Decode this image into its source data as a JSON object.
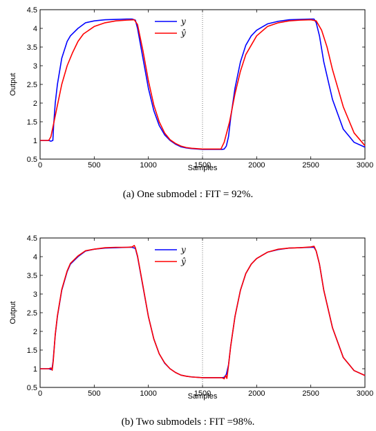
{
  "chart_data": [
    {
      "type": "line",
      "caption": "(a) One submodel : FIT = 92%.",
      "xlabel": "Samples",
      "ylabel": "Output",
      "xlim": [
        0,
        3000
      ],
      "ylim": [
        0.5,
        4.5
      ],
      "xticks": [
        "0",
        "500",
        "1000",
        "1500",
        "2000",
        "2500",
        "3000"
      ],
      "yticks": [
        "0.5",
        "1",
        "1.5",
        "2",
        "2.5",
        "3",
        "3.5",
        "4",
        "4.5"
      ],
      "vline_x": 1500,
      "legend_position": "top-right",
      "series": [
        {
          "name": "y",
          "color": "#0000ff",
          "x": [
            0,
            80,
            100,
            110,
            118,
            125,
            140,
            160,
            200,
            250,
            280,
            350,
            420,
            500,
            600,
            700,
            800,
            850,
            880,
            900,
            950,
            1000,
            1050,
            1100,
            1150,
            1200,
            1250,
            1300,
            1350,
            1400,
            1500,
            1600,
            1680,
            1700,
            1720,
            1740,
            1760,
            1800,
            1850,
            1900,
            1950,
            2000,
            2100,
            2200,
            2300,
            2400,
            2500,
            2530,
            2550,
            2580,
            2620,
            2700,
            2800,
            2900,
            3000
          ],
          "y": [
            1.0,
            1.0,
            0.98,
            0.99,
            1.0,
            1.4,
            2.0,
            2.5,
            3.2,
            3.65,
            3.8,
            4.0,
            4.15,
            4.2,
            4.23,
            4.24,
            4.25,
            4.25,
            4.22,
            4.0,
            3.2,
            2.4,
            1.8,
            1.4,
            1.15,
            1.0,
            0.9,
            0.83,
            0.8,
            0.78,
            0.76,
            0.76,
            0.76,
            0.77,
            0.85,
            1.1,
            1.6,
            2.4,
            3.1,
            3.55,
            3.8,
            3.95,
            4.12,
            4.19,
            4.23,
            4.24,
            4.25,
            4.25,
            4.15,
            3.8,
            3.1,
            2.1,
            1.3,
            0.95,
            0.82
          ]
        },
        {
          "name": "ŷ",
          "color": "#ff0000",
          "x": [
            0,
            80,
            100,
            150,
            200,
            250,
            300,
            350,
            400,
            500,
            600,
            700,
            800,
            870,
            900,
            950,
            1000,
            1050,
            1100,
            1150,
            1200,
            1250,
            1300,
            1350,
            1400,
            1500,
            1600,
            1670,
            1700,
            1750,
            1800,
            1850,
            1900,
            2000,
            2100,
            2200,
            2300,
            2400,
            2500,
            2550,
            2600,
            2650,
            2700,
            2800,
            2900,
            3000
          ],
          "y": [
            1.0,
            1.0,
            1.1,
            1.8,
            2.5,
            3.0,
            3.35,
            3.65,
            3.85,
            4.05,
            4.15,
            4.2,
            4.22,
            4.23,
            4.1,
            3.4,
            2.6,
            1.95,
            1.5,
            1.2,
            1.02,
            0.92,
            0.85,
            0.81,
            0.79,
            0.77,
            0.77,
            0.77,
            0.95,
            1.5,
            2.25,
            2.85,
            3.3,
            3.8,
            4.05,
            4.15,
            4.2,
            4.22,
            4.23,
            4.2,
            3.95,
            3.5,
            2.9,
            1.9,
            1.2,
            0.86
          ]
        }
      ]
    },
    {
      "type": "line",
      "caption": "(b) Two submodels : FIT =98%.",
      "xlabel": "Samples",
      "ylabel": "Output",
      "xlim": [
        0,
        3000
      ],
      "ylim": [
        0.5,
        4.5
      ],
      "xticks": [
        "0",
        "500",
        "1000",
        "1500",
        "2000",
        "2500",
        "3000"
      ],
      "yticks": [
        "0.5",
        "1",
        "1.5",
        "2",
        "2.5",
        "3",
        "3.5",
        "4",
        "4.5"
      ],
      "vline_x": 1500,
      "legend_position": "top-right",
      "series": [
        {
          "name": "y",
          "color": "#0000ff",
          "x": [
            0,
            80,
            100,
            110,
            120,
            140,
            160,
            200,
            250,
            280,
            350,
            420,
            500,
            600,
            700,
            800,
            850,
            880,
            900,
            950,
            1000,
            1050,
            1100,
            1150,
            1200,
            1250,
            1300,
            1350,
            1400,
            1500,
            1600,
            1680,
            1700,
            1720,
            1740,
            1760,
            1800,
            1850,
            1900,
            1950,
            2000,
            2100,
            2200,
            2300,
            2400,
            2500,
            2530,
            2550,
            2580,
            2620,
            2700,
            2800,
            2900,
            3000
          ],
          "y": [
            1.0,
            1.0,
            0.98,
            0.99,
            1.2,
            1.9,
            2.4,
            3.1,
            3.6,
            3.8,
            4.0,
            4.15,
            4.2,
            4.23,
            4.24,
            4.25,
            4.25,
            4.22,
            4.0,
            3.2,
            2.4,
            1.8,
            1.4,
            1.15,
            1.0,
            0.9,
            0.83,
            0.8,
            0.78,
            0.76,
            0.76,
            0.76,
            0.77,
            0.85,
            1.1,
            1.6,
            2.4,
            3.1,
            3.55,
            3.8,
            3.95,
            4.12,
            4.19,
            4.23,
            4.24,
            4.25,
            4.25,
            4.15,
            3.8,
            3.1,
            2.1,
            1.3,
            0.95,
            0.82
          ]
        },
        {
          "name": "ŷ",
          "color": "#ff0000",
          "x": [
            0,
            80,
            100,
            112,
            122,
            140,
            160,
            200,
            250,
            280,
            350,
            420,
            500,
            600,
            700,
            800,
            850,
            870,
            880,
            900,
            950,
            1000,
            1050,
            1100,
            1150,
            1200,
            1250,
            1300,
            1350,
            1400,
            1500,
            1600,
            1680,
            1700,
            1715,
            1725,
            1740,
            1760,
            1800,
            1850,
            1900,
            1950,
            2000,
            2100,
            2200,
            2300,
            2400,
            2500,
            2530,
            2550,
            2580,
            2620,
            2700,
            2800,
            2900,
            3000
          ],
          "y": [
            1.0,
            1.0,
            1.02,
            0.96,
            1.22,
            1.92,
            2.42,
            3.12,
            3.62,
            3.82,
            4.02,
            4.16,
            4.2,
            4.24,
            4.25,
            4.25,
            4.26,
            4.3,
            4.24,
            4.02,
            3.22,
            2.4,
            1.8,
            1.4,
            1.16,
            1.0,
            0.9,
            0.83,
            0.8,
            0.78,
            0.76,
            0.76,
            0.76,
            0.73,
            0.82,
            0.74,
            1.08,
            1.6,
            2.4,
            3.1,
            3.55,
            3.8,
            3.95,
            4.12,
            4.2,
            4.23,
            4.24,
            4.26,
            4.28,
            4.15,
            3.8,
            3.1,
            2.1,
            1.3,
            0.95,
            0.82
          ]
        }
      ]
    }
  ]
}
